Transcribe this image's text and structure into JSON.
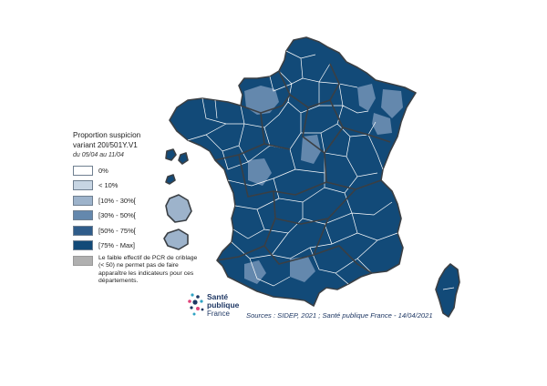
{
  "legend": {
    "title_line1": "Proportion suspicion",
    "title_line2": "variant 20I/501Y.V1",
    "period": "du 05/04 au 11/04",
    "classes": [
      {
        "label": "0%",
        "color": "#ffffff"
      },
      {
        "label": "< 10%",
        "color": "#c7d5e3"
      },
      {
        "label": "[10% - 30%[",
        "color": "#9db3cb"
      },
      {
        "label": "[30% - 50%[",
        "color": "#6488ad"
      },
      {
        "label": "[50% - 75%[",
        "color": "#2f5c8a"
      },
      {
        "label": "[75% - Max]",
        "color": "#124a78"
      }
    ],
    "note": "Le faible effectif de PCR de criblage (< 50) ne permet pas de faire apparaître les indicateurs pour ces départements.",
    "note_color": "#b0b0b0"
  },
  "logo": {
    "line1": "Santé",
    "line2": "publique",
    "line3": "France"
  },
  "source": "Sources : SIDEP, 2021 ; Santé publique France - 14/04/2021",
  "map": {
    "border_color": "#3a3f44",
    "dept_line_color": "#ffffff"
  }
}
